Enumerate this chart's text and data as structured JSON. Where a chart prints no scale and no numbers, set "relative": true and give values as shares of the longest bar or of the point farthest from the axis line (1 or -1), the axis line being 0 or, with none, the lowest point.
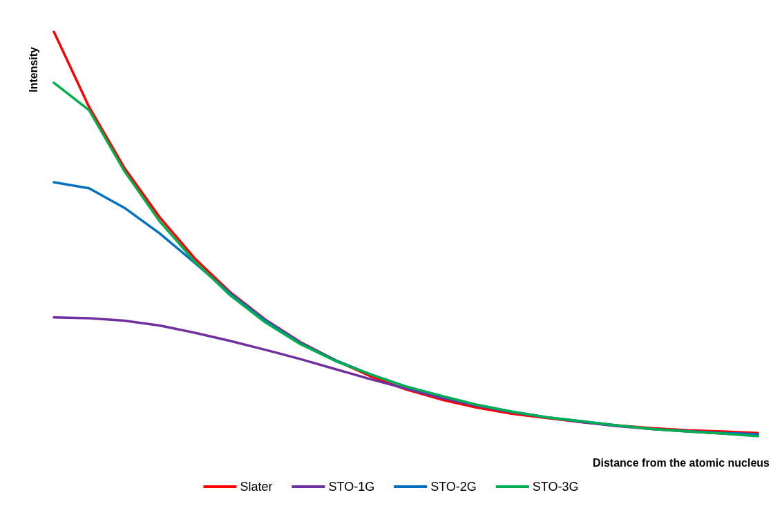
{
  "chart_data": {
    "type": "line",
    "relative": true,
    "xlabel": "Distance from the atomic nucleus",
    "ylabel": "Intensity",
    "grid": false,
    "legend": "bottom",
    "marker": "none",
    "line_style": "solid",
    "categories": [
      null,
      null,
      null,
      null,
      null,
      null,
      null,
      null,
      null,
      null,
      null,
      null,
      null,
      null,
      null,
      null,
      null,
      null,
      null,
      null,
      null
    ],
    "series": [
      {
        "name": "Slater",
        "color": "#ff0000",
        "values": [
          1.0,
          0.814,
          0.664,
          0.542,
          0.44,
          0.357,
          0.289,
          0.233,
          0.188,
          0.148,
          0.116,
          0.091,
          0.071,
          0.056,
          0.045,
          0.035,
          0.027,
          0.02,
          0.015,
          0.012,
          0.008
        ]
      },
      {
        "name": "STO-1G",
        "color": "#7030a0",
        "values": [
          0.294,
          0.292,
          0.286,
          0.274,
          0.256,
          0.236,
          0.214,
          0.191,
          0.166,
          0.141,
          0.118,
          0.095,
          0.076,
          0.06,
          0.047,
          0.035,
          0.025,
          0.018,
          0.012,
          0.007,
          0.002
        ]
      },
      {
        "name": "STO-2G",
        "color": "#0070c0",
        "values": [
          0.628,
          0.613,
          0.565,
          0.502,
          0.429,
          0.354,
          0.287,
          0.231,
          0.188,
          0.153,
          0.123,
          0.1,
          0.078,
          0.061,
          0.047,
          0.037,
          0.027,
          0.018,
          0.013,
          0.008,
          0.005
        ]
      },
      {
        "name": "STO-3G",
        "color": "#00b050",
        "values": [
          0.874,
          0.806,
          0.656,
          0.532,
          0.432,
          0.349,
          0.282,
          0.228,
          0.186,
          0.153,
          0.123,
          0.1,
          0.078,
          0.061,
          0.047,
          0.037,
          0.027,
          0.018,
          0.012,
          0.007,
          0
        ]
      }
    ]
  }
}
